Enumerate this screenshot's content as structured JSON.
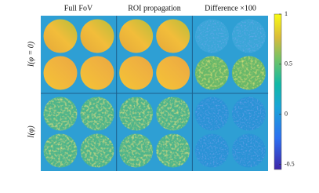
{
  "figure": {
    "column_titles": [
      "Full FoV",
      "ROI propagation",
      "Difference ×100"
    ],
    "row_labels": [
      "I(φ = 0)",
      "I(φ)"
    ]
  },
  "colorbar": {
    "lim": [
      -0.55,
      1
    ],
    "ticks": [
      1,
      0.5,
      0,
      -0.5
    ]
  }
}
